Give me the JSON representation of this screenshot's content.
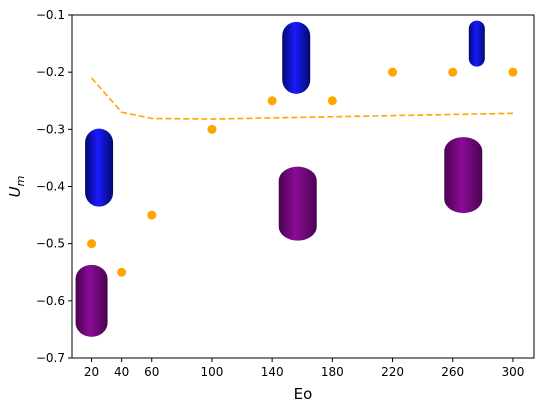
{
  "chart_data": {
    "type": "scatter",
    "xlabel": "Eo",
    "ylabel": "U",
    "ylabel_subscript": "m",
    "xlim": [
      7,
      314
    ],
    "ylim": [
      -0.7,
      -0.1
    ],
    "xticks": [
      "20",
      "40",
      "60",
      "100",
      "140",
      "180",
      "220",
      "260",
      "300"
    ],
    "xtick_values": [
      20,
      40,
      60,
      100,
      140,
      180,
      220,
      260,
      300
    ],
    "yticks": [
      "-0.1",
      "-0.2",
      "-0.3",
      "-0.4",
      "-0.5",
      "-0.6",
      "-0.7"
    ],
    "ytick_values": [
      -0.1,
      -0.2,
      -0.3,
      -0.4,
      -0.5,
      -0.6,
      -0.7
    ],
    "series": [
      {
        "style": "points",
        "color": "#ffa500",
        "x": [
          20,
          40,
          60,
          100,
          140,
          180,
          220,
          260,
          300
        ],
        "y": [
          -0.5,
          -0.55,
          -0.45,
          -0.3,
          -0.25,
          -0.25,
          -0.2,
          -0.2,
          -0.2
        ]
      },
      {
        "style": "dashed-line",
        "color": "#ffa500",
        "x": [
          20,
          40,
          60,
          100,
          140,
          180,
          220,
          260,
          300
        ],
        "y": [
          -0.21,
          -0.27,
          -0.281,
          -0.282,
          -0.28,
          -0.278,
          -0.276,
          -0.274,
          -0.272
        ]
      }
    ],
    "bubble_images": [
      {
        "color": "purple",
        "x": 20,
        "y": -0.6
      },
      {
        "color": "blue",
        "x": 25,
        "y": -0.367
      },
      {
        "color": "purple",
        "x": 157,
        "y": -0.43
      },
      {
        "color": "blue",
        "x": 156,
        "y": -0.175
      },
      {
        "color": "purple",
        "x": 267,
        "y": -0.38
      },
      {
        "color": "blue",
        "x": 276,
        "y": -0.15
      }
    ],
    "colors": {
      "purple": "#7a0a86",
      "blue": "#1010d0"
    },
    "grid": false
  }
}
